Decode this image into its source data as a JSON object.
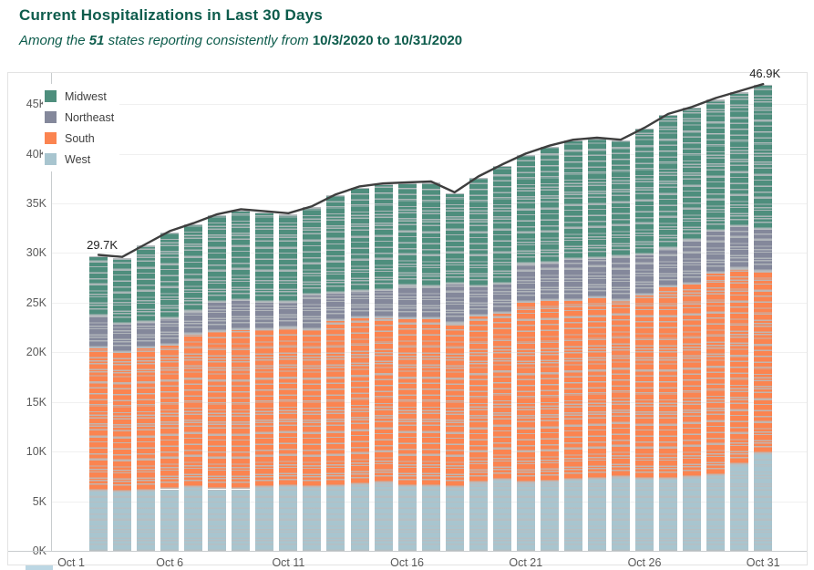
{
  "title": "Current Hospitalizations in Last 30 Days",
  "subtitle": {
    "lead": "Among the ",
    "count": "51",
    "mid": " states reporting consistently from ",
    "date_from": "10/3/2020",
    "connector": " to ",
    "date_to": "10/31/2020"
  },
  "legend": [
    "Midwest",
    "Northeast",
    "South",
    "West"
  ],
  "colors": {
    "midwest": "#4e8e7d",
    "northeast": "#84889b",
    "south": "#fb8450",
    "west": "#a8c5cf",
    "total_line": "#3e3e3e",
    "segment_separator": "#b8bdc0",
    "title_text": "#0d5c4c",
    "axis_text": "#5a5a5a",
    "gridline": "#f0f0f0",
    "axis_line": "#c8ccce",
    "annotation_text": "#1f1f1f"
  },
  "chart_data": {
    "type": "bar",
    "subtype": "stacked-bars-with-total-line",
    "title": "Current Hospitalizations in Last 30 Days",
    "unit": "thousands of patients",
    "grid": "horizontal",
    "legend_position": "top-left-inside",
    "start_day": 3,
    "categories": [
      "Oct 3",
      "Oct 4",
      "Oct 5",
      "Oct 6",
      "Oct 7",
      "Oct 8",
      "Oct 9",
      "Oct 10",
      "Oct 11",
      "Oct 12",
      "Oct 13",
      "Oct 14",
      "Oct 15",
      "Oct 16",
      "Oct 17",
      "Oct 18",
      "Oct 19",
      "Oct 20",
      "Oct 21",
      "Oct 22",
      "Oct 23",
      "Oct 24",
      "Oct 25",
      "Oct 26",
      "Oct 27",
      "Oct 28",
      "Oct 29",
      "Oct 30",
      "Oct 31"
    ],
    "series": [
      {
        "name": "West",
        "color_key": "west",
        "values": [
          6.1,
          6.0,
          6.1,
          6.2,
          6.4,
          6.2,
          6.2,
          6.4,
          6.5,
          6.4,
          6.5,
          6.7,
          6.9,
          6.5,
          6.5,
          6.4,
          6.9,
          7.2,
          6.9,
          7.0,
          7.2,
          7.3,
          7.4,
          7.3,
          7.3,
          7.4,
          7.6,
          8.7,
          9.8
        ]
      },
      {
        "name": "South",
        "color_key": "south",
        "values": [
          14.4,
          14.0,
          14.4,
          14.6,
          15.5,
          15.9,
          16.1,
          15.9,
          16.0,
          15.9,
          16.7,
          16.8,
          16.6,
          16.9,
          16.9,
          16.6,
          16.8,
          16.8,
          18.2,
          18.3,
          18.1,
          18.2,
          17.9,
          18.5,
          19.3,
          19.5,
          20.4,
          19.8,
          18.4
        ]
      },
      {
        "name": "Northeast",
        "color_key": "northeast",
        "values": [
          3.2,
          2.9,
          2.6,
          2.6,
          2.3,
          3.0,
          3.0,
          2.8,
          2.6,
          3.5,
          2.8,
          2.7,
          2.8,
          3.3,
          3.2,
          3.9,
          2.9,
          2.9,
          3.8,
          3.7,
          4.1,
          4.0,
          4.4,
          4.1,
          3.9,
          4.4,
          4.2,
          4.2,
          4.2
        ]
      },
      {
        "name": "Midwest",
        "color_key": "midwest",
        "values": [
          6.0,
          6.6,
          7.7,
          8.7,
          8.7,
          8.7,
          9.0,
          9.0,
          8.8,
          8.8,
          9.8,
          10.4,
          10.6,
          10.3,
          10.5,
          9.1,
          11.0,
          11.9,
          11.0,
          11.7,
          11.9,
          12.0,
          11.6,
          12.6,
          13.4,
          13.3,
          13.3,
          13.5,
          14.5
        ]
      }
    ],
    "totals_line": {
      "name": "Total",
      "values": [
        29.7,
        29.5,
        30.8,
        32.1,
        32.9,
        33.8,
        34.3,
        34.1,
        33.9,
        34.6,
        35.8,
        36.6,
        36.9,
        37.0,
        37.1,
        36.0,
        37.6,
        38.8,
        39.9,
        40.7,
        41.3,
        41.5,
        41.3,
        42.5,
        43.9,
        44.6,
        45.5,
        46.2,
        46.9
      ]
    },
    "annotations": [
      {
        "category": "Oct 3",
        "index": 0,
        "label": "29.7K"
      },
      {
        "category": "Oct 31",
        "index": 28,
        "label": "46.9K"
      }
    ],
    "y_tick_labels": [
      "0K",
      "5K",
      "10K",
      "15K",
      "20K",
      "25K",
      "30K",
      "35K",
      "40K",
      "45K"
    ],
    "y_tick_values": [
      0,
      5,
      10,
      15,
      20,
      25,
      30,
      35,
      40,
      45
    ],
    "ylim": [
      0,
      48.1
    ],
    "x_tick_days": [
      1,
      6,
      11,
      16,
      21,
      26,
      31
    ],
    "x_tick_labels": [
      "Oct 1",
      "Oct 6",
      "Oct 11",
      "Oct 16",
      "Oct 21",
      "Oct 26",
      "Oct 31"
    ]
  }
}
